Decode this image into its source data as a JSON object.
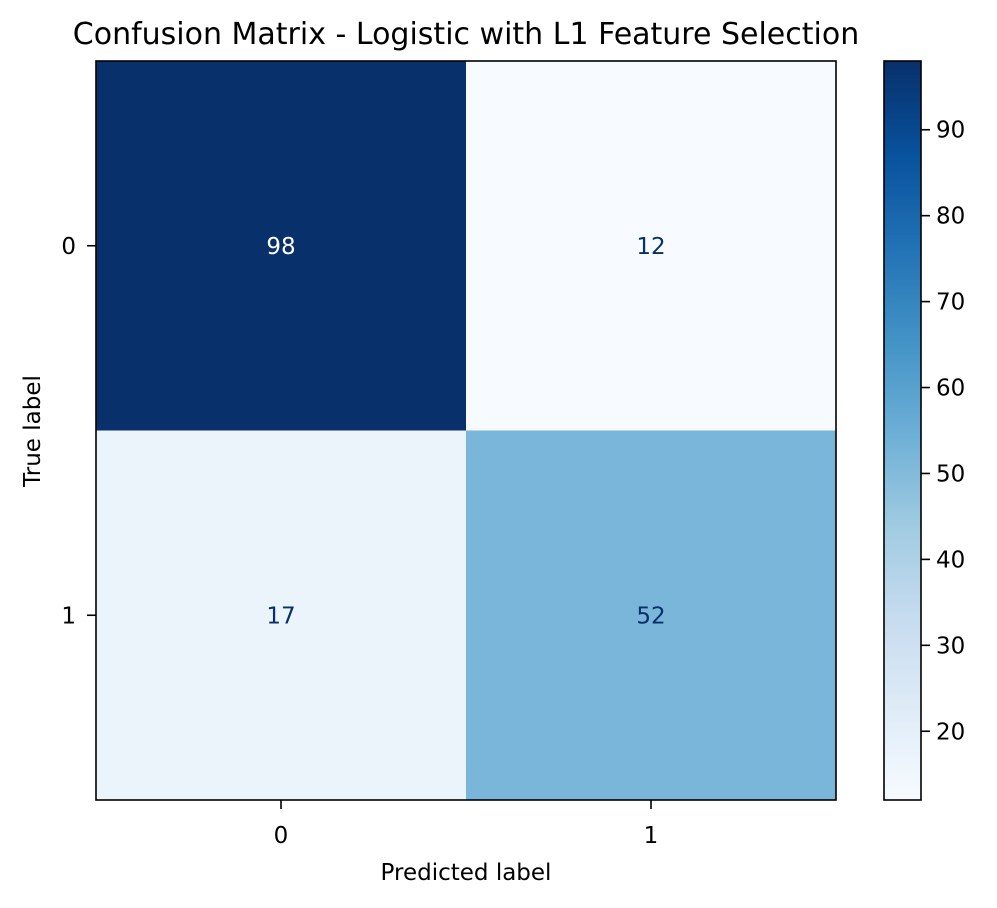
{
  "chart_data": {
    "type": "heatmap",
    "title": "Confusion Matrix - Logistic with L1 Feature Selection",
    "xlabel": "Predicted label",
    "ylabel": "True label",
    "x_categories": [
      "0",
      "1"
    ],
    "y_categories": [
      "0",
      "1"
    ],
    "values": [
      [
        98,
        12
      ],
      [
        17,
        52
      ]
    ],
    "colormap": "Blues",
    "colorbar": {
      "min": 12,
      "max": 98,
      "ticks": [
        20,
        30,
        40,
        50,
        60,
        70,
        80,
        90
      ]
    },
    "colorscale_stops": [
      "#f7fbff",
      "#deebf7",
      "#c6dbef",
      "#9ecae1",
      "#6baed6",
      "#4292c6",
      "#2171b5",
      "#08519c",
      "#08306b"
    ],
    "text_dark": "#08306b",
    "text_light": "#ffffff",
    "grid": false
  }
}
